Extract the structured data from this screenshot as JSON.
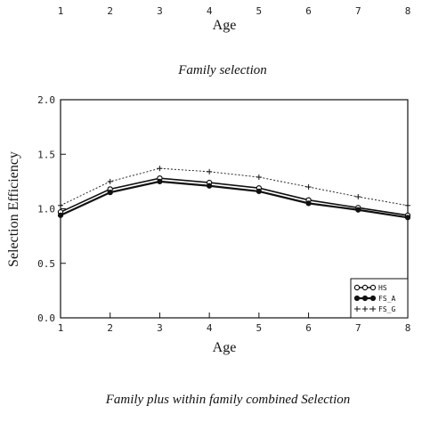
{
  "top_strip": {
    "ticks": [
      "1",
      "2",
      "3",
      "4",
      "5",
      "6",
      "7",
      "8"
    ],
    "xlabel": "Age",
    "caption": "Family selection"
  },
  "chart_data": {
    "type": "line",
    "title": "",
    "xlabel": "Age",
    "ylabel": "Selection Efficiency",
    "x": [
      1,
      2,
      3,
      4,
      5,
      6,
      7,
      8
    ],
    "xlim": [
      1,
      8
    ],
    "ylim": [
      0.0,
      2.0
    ],
    "x_ticks": [
      "1",
      "2",
      "3",
      "4",
      "5",
      "6",
      "7",
      "8"
    ],
    "y_ticks": [
      "0.0",
      "0.5",
      "1.0",
      "1.5",
      "2.0"
    ],
    "grid": false,
    "legend_placement": "bottom-right",
    "series": [
      {
        "name": "HS",
        "marker": "open-circle",
        "values": [
          0.97,
          1.18,
          1.28,
          1.24,
          1.19,
          1.08,
          1.01,
          0.94
        ]
      },
      {
        "name": "FS_A",
        "marker": "filled-circle",
        "values": [
          0.94,
          1.15,
          1.25,
          1.21,
          1.16,
          1.05,
          0.99,
          0.92
        ]
      },
      {
        "name": "FS_G",
        "marker": "plus",
        "values": [
          1.03,
          1.25,
          1.37,
          1.34,
          1.29,
          1.2,
          1.11,
          1.03
        ]
      }
    ],
    "caption": "Family plus within family combined Selection"
  }
}
